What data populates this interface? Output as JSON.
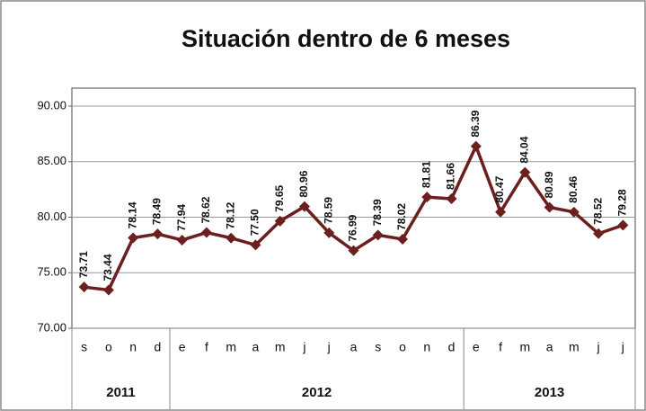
{
  "chart_data": {
    "type": "line",
    "title": "Situación dentro de 6 meses",
    "groups": [
      {
        "name": "2011",
        "categories": [
          "s",
          "o",
          "n",
          "d"
        ]
      },
      {
        "name": "2012",
        "categories": [
          "e",
          "f",
          "m",
          "a",
          "m",
          "j",
          "j",
          "a",
          "s",
          "o",
          "n",
          "d"
        ]
      },
      {
        "name": "2013",
        "categories": [
          "e",
          "f",
          "m",
          "a",
          "m",
          "j",
          "j"
        ]
      }
    ],
    "values": [
      73.71,
      73.44,
      78.14,
      78.49,
      77.94,
      78.62,
      78.12,
      77.5,
      79.65,
      80.96,
      78.59,
      76.99,
      78.39,
      78.02,
      81.81,
      81.66,
      86.39,
      80.47,
      84.04,
      80.89,
      80.46,
      78.52,
      79.28
    ],
    "value_labels": [
      "73.71",
      "73.44",
      "78.14",
      "78.49",
      "77.94",
      "78.62",
      "78.12",
      "77.50",
      "79.65",
      "80.96",
      "78.59",
      "76.99",
      "78.39",
      "78.02",
      "81.81",
      "81.66",
      "86.39",
      "80.47",
      "84.04",
      "80.89",
      "80.46",
      "78.52",
      "79.28"
    ],
    "color": "#6b1f1f",
    "ylim": [
      70,
      90
    ],
    "yticks": [
      {
        "value": 70,
        "label": "70.00"
      },
      {
        "value": 75,
        "label": "75.00"
      },
      {
        "value": 80,
        "label": "80.00"
      },
      {
        "value": 85,
        "label": "85.00"
      },
      {
        "value": 90,
        "label": "90.00"
      }
    ],
    "grid": true
  }
}
